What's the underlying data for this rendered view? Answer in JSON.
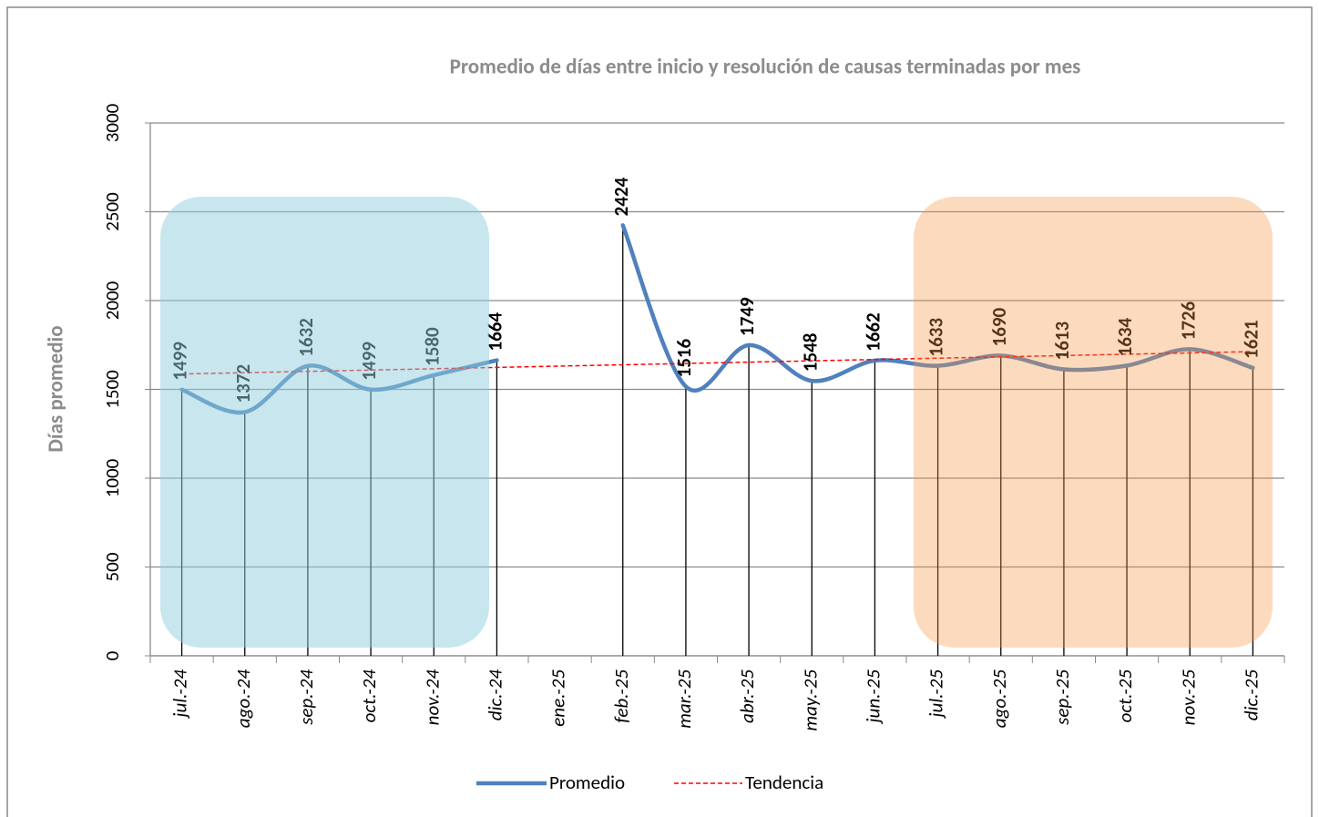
{
  "chart_data": {
    "type": "line",
    "title": "Promedio de días entre inicio y resolución de causas terminadas por mes",
    "y_label": "Días promedio",
    "categories": [
      "jul.-24",
      "ago.-24",
      "sep.-24",
      "oct.-24",
      "nov.-24",
      "dic.-24",
      "ene.-25",
      "feb.-25",
      "mar.-25",
      "abr.-25",
      "may.-25",
      "jun.-25",
      "jul.-25",
      "ago.-25",
      "sep.-25",
      "oct.-25",
      "nov.-25",
      "dic.-25"
    ],
    "series": [
      {
        "name": "Promedio",
        "color": "#4f81bd",
        "values": [
          1499,
          1372,
          1632,
          1499,
          1580,
          1664,
          null,
          2424,
          1516,
          1749,
          1548,
          1662,
          1633,
          1690,
          1613,
          1634,
          1726,
          1621
        ]
      }
    ],
    "trendline": {
      "name": "Tendencia",
      "color": "#ff0000",
      "kind": "linear"
    },
    "ylim": [
      0,
      3000
    ],
    "yticks": [
      0,
      500,
      1000,
      1500,
      2000,
      2500,
      3000
    ],
    "grid": true,
    "legend": "bottom"
  }
}
